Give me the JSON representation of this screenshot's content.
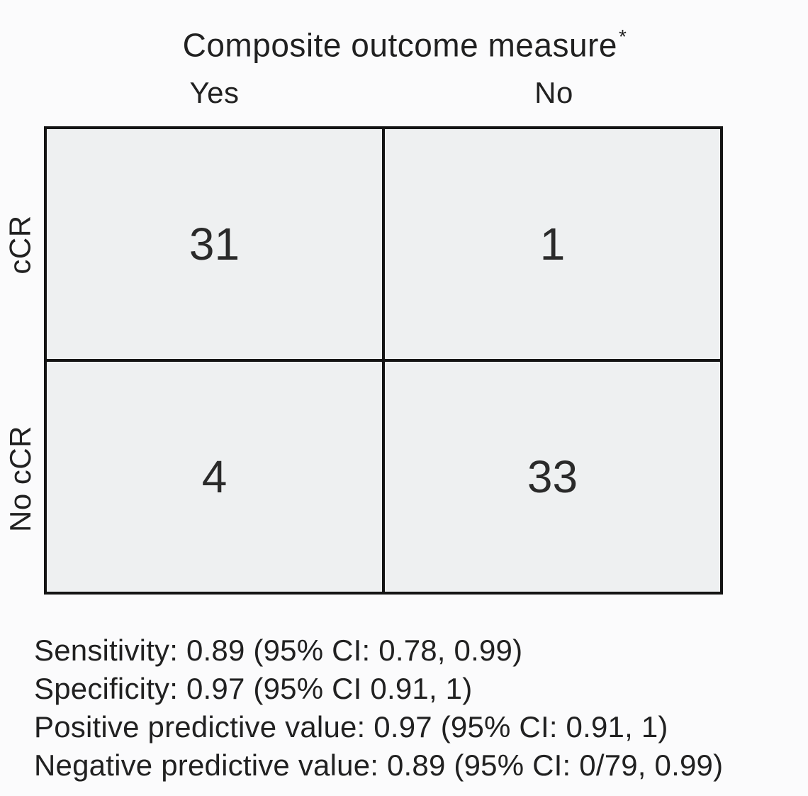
{
  "title": {
    "text": "Composite outcome measure",
    "superscript": "*"
  },
  "chart_data": {
    "type": "table",
    "title": "Composite outcome measure*",
    "column_headers": [
      "Yes",
      "No"
    ],
    "row_headers": [
      "cCR",
      "No cCR"
    ],
    "cells": [
      [
        31,
        1
      ],
      [
        4,
        33
      ]
    ],
    "annotations": [
      "Sensitivity: 0.89 (95% CI: 0.78, 0.99)",
      "Specificity: 0.97 (95% CI 0.91, 1)",
      "Positive predictive value: 0.97 (95% CI: 0.91, 1)",
      "Negative predictive value: 0.89 (95% CI: 0/79, 0.99)"
    ],
    "layout": {
      "legend": "none",
      "grid": "2x2 black ruled table",
      "row_labels_rotated_degrees": -90
    }
  },
  "colors": {
    "page_background": "#fbfbfc",
    "cell_background": "#eef0f1",
    "line_color": "#141414",
    "text_color": "#212121"
  }
}
